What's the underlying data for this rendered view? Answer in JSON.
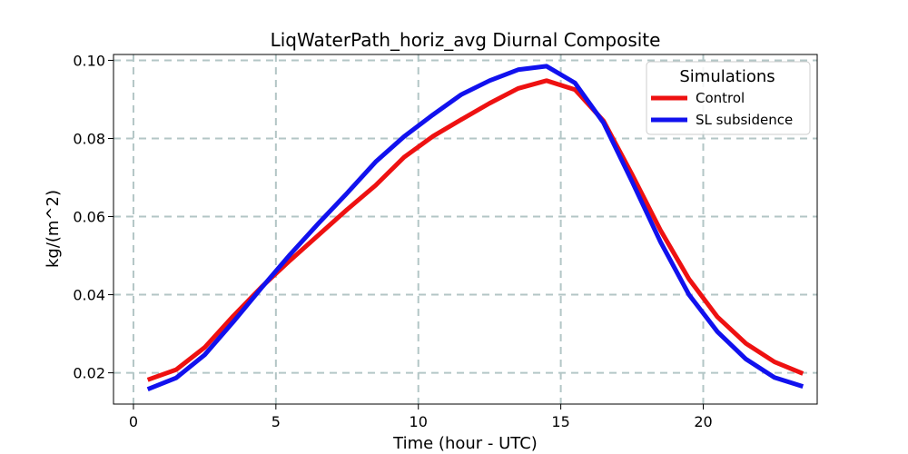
{
  "chart_data": {
    "type": "line",
    "title": "LiqWaterPath_horiz_avg Diurnal Composite",
    "xlabel": "Time (hour - UTC)",
    "ylabel": "kg/(m^2)",
    "xlim": [
      -0.7,
      24.0
    ],
    "ylim": [
      0.012,
      0.1015
    ],
    "xticks": [
      0,
      5,
      10,
      15,
      20
    ],
    "xtick_labels": [
      "0",
      "5",
      "10",
      "15",
      "20"
    ],
    "yticks": [
      0.02,
      0.04,
      0.06,
      0.08,
      0.1
    ],
    "ytick_labels": [
      "0.02",
      "0.04",
      "0.06",
      "0.08",
      "0.10"
    ],
    "grid": true,
    "legend": {
      "title": "Simulations",
      "position": "top-right"
    },
    "x": [
      0.5,
      1.5,
      2.5,
      3.5,
      4.5,
      5.5,
      6.5,
      7.5,
      8.5,
      9.5,
      10.5,
      11.5,
      12.5,
      13.5,
      14.5,
      15.5,
      16.5,
      17.5,
      18.5,
      19.5,
      20.5,
      21.5,
      22.5,
      23.5
    ],
    "series": [
      {
        "name": "Control",
        "color": "#ee1111",
        "values": [
          0.0182,
          0.0208,
          0.0265,
          0.0345,
          0.042,
          0.0488,
          0.0553,
          0.0618,
          0.068,
          0.0752,
          0.0805,
          0.0848,
          0.089,
          0.0928,
          0.0948,
          0.0925,
          0.0845,
          0.0708,
          0.0565,
          0.044,
          0.0343,
          0.0275,
          0.0228,
          0.0198
        ]
      },
      {
        "name": "SL subsidence",
        "color": "#1111ee",
        "values": [
          0.0158,
          0.0187,
          0.0246,
          0.033,
          0.0418,
          0.0503,
          0.0583,
          0.066,
          0.074,
          0.0805,
          0.086,
          0.0912,
          0.0948,
          0.0976,
          0.0985,
          0.0942,
          0.084,
          0.069,
          0.0535,
          0.04,
          0.0305,
          0.0235,
          0.0188,
          0.0165
        ]
      }
    ]
  }
}
